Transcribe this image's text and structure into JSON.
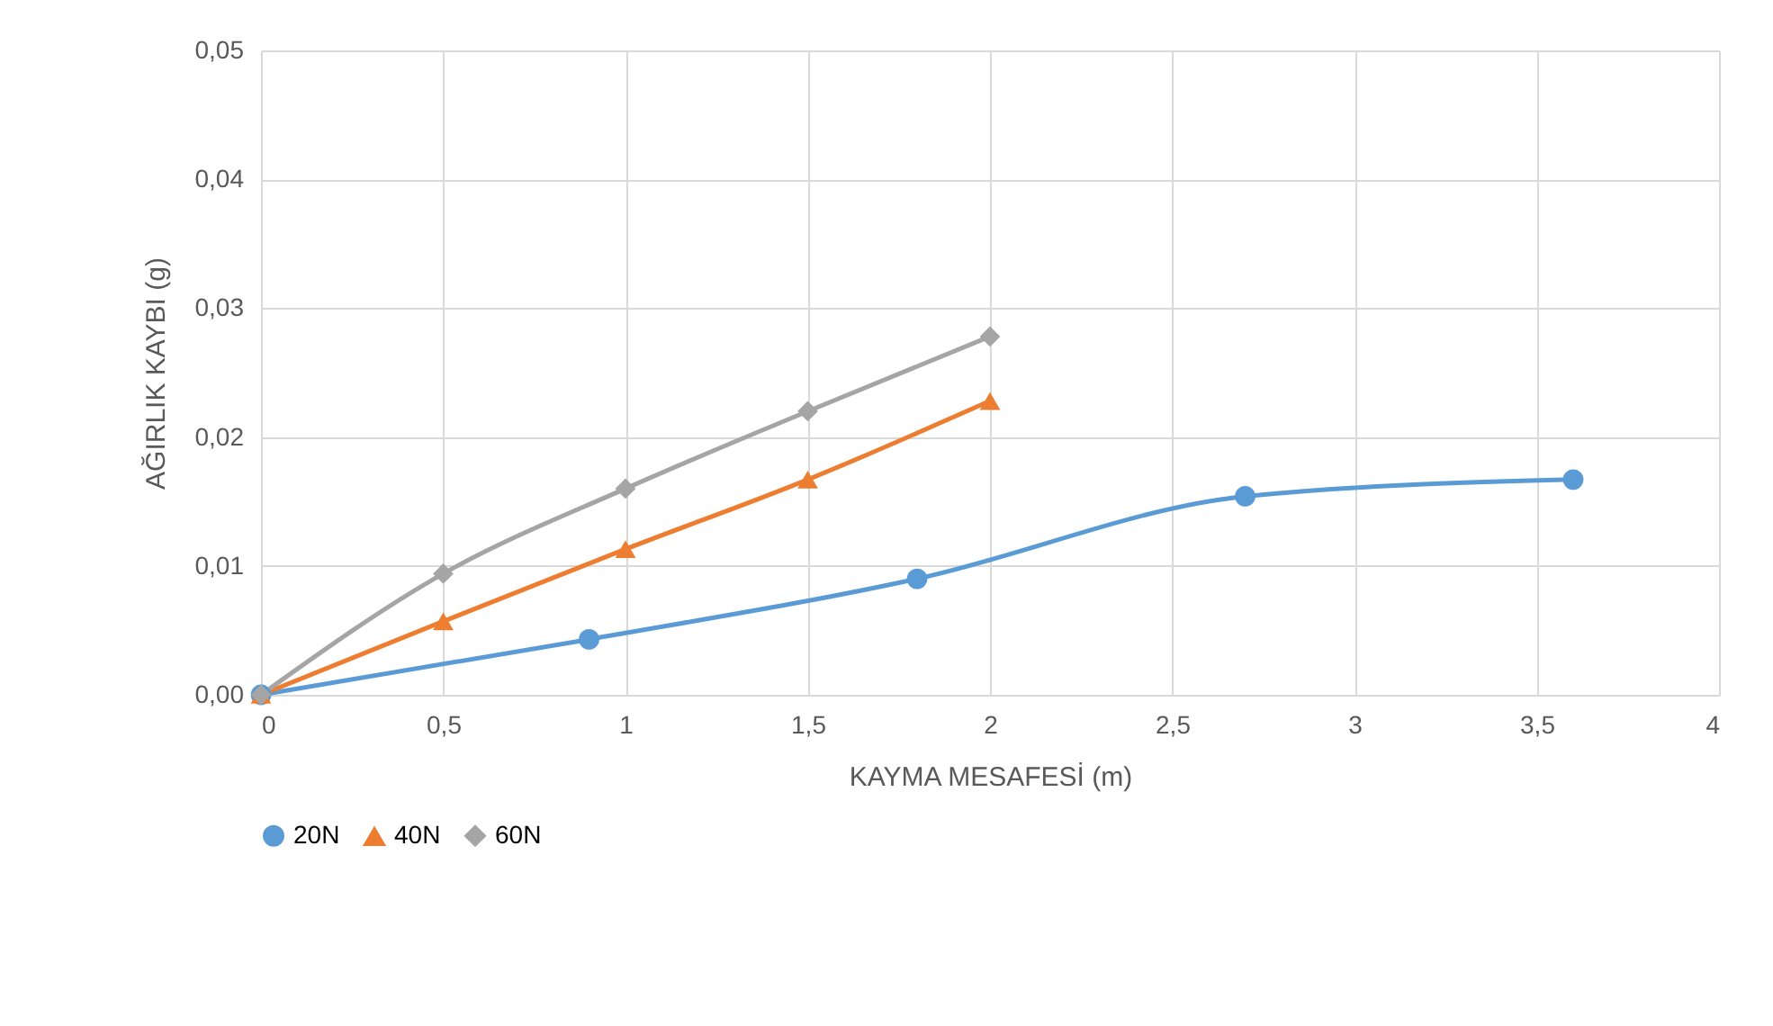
{
  "chart_data": {
    "type": "line",
    "xlabel": "KAYMA MESAFESİ (m)",
    "ylabel": "AĞIRLIK KAYBI (g)",
    "xlim": [
      0,
      4
    ],
    "xticks": [
      0,
      {
        "value": 0.5,
        "label": "0,5"
      },
      1,
      {
        "value": 1.5,
        "label": "1,5"
      },
      2,
      {
        "value": 2.5,
        "label": "2,5"
      },
      3,
      {
        "value": 3.5,
        "label": "3,5"
      },
      4
    ],
    "ylim": [
      0,
      0.05
    ],
    "yticks": [
      {
        "value": 0,
        "label": "0,00"
      },
      {
        "value": 0.01,
        "label": "0,01"
      },
      {
        "value": 0.02,
        "label": "0,02"
      },
      {
        "value": 0.03,
        "label": "0,03"
      },
      {
        "value": 0.04,
        "label": "0,04"
      },
      {
        "value": 0.05,
        "label": "0,05"
      }
    ],
    "grid": true,
    "legend": "bottom",
    "series": [
      {
        "name": "20N",
        "color": "#5b9bd5",
        "marker": "circle",
        "x": [
          0,
          0.9,
          1.8,
          2.7,
          3.6
        ],
        "values": [
          0,
          0.0043,
          0.009,
          0.0154,
          0.0167
        ]
      },
      {
        "name": "40N",
        "color": "#ed7d31",
        "marker": "triangle",
        "x": [
          0,
          0.5,
          1,
          1.5,
          2
        ],
        "values": [
          0,
          0.0057,
          0.0113,
          0.0167,
          0.0228
        ]
      },
      {
        "name": "60N",
        "color": "#a5a5a5",
        "marker": "diamond",
        "x": [
          0,
          0.5,
          1,
          1.5,
          2
        ],
        "values": [
          0,
          0.0094,
          0.016,
          0.022,
          0.0278
        ]
      }
    ]
  }
}
